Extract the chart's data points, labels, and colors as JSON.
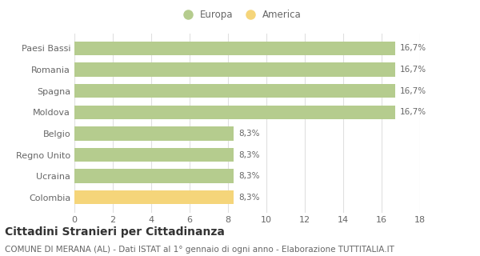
{
  "categories": [
    "Colombia",
    "Ucraina",
    "Regno Unito",
    "Belgio",
    "Moldova",
    "Spagna",
    "Romania",
    "Paesi Bassi"
  ],
  "values": [
    8.3,
    8.3,
    8.3,
    8.3,
    16.7,
    16.7,
    16.7,
    16.7
  ],
  "bar_colors": [
    "#f5d57a",
    "#b5cc8e",
    "#b5cc8e",
    "#b5cc8e",
    "#b5cc8e",
    "#b5cc8e",
    "#b5cc8e",
    "#b5cc8e"
  ],
  "labels": [
    "8,3%",
    "8,3%",
    "8,3%",
    "8,3%",
    "16,7%",
    "16,7%",
    "16,7%",
    "16,7%"
  ],
  "legend_europa_color": "#b5cc8e",
  "legend_america_color": "#f5d57a",
  "xlim": [
    0,
    18
  ],
  "xticks": [
    0,
    2,
    4,
    6,
    8,
    10,
    12,
    14,
    16,
    18
  ],
  "title": "Cittadini Stranieri per Cittadinanza",
  "subtitle": "COMUNE DI MERANA (AL) - Dati ISTAT al 1° gennaio di ogni anno - Elaborazione TUTTITALIA.IT",
  "background_color": "#ffffff",
  "grid_color": "#e0e0e0",
  "bar_edge_color": "none",
  "label_fontsize": 7.5,
  "title_fontsize": 10,
  "subtitle_fontsize": 7.5,
  "ytick_fontsize": 8,
  "xtick_fontsize": 8,
  "legend_fontsize": 8.5
}
